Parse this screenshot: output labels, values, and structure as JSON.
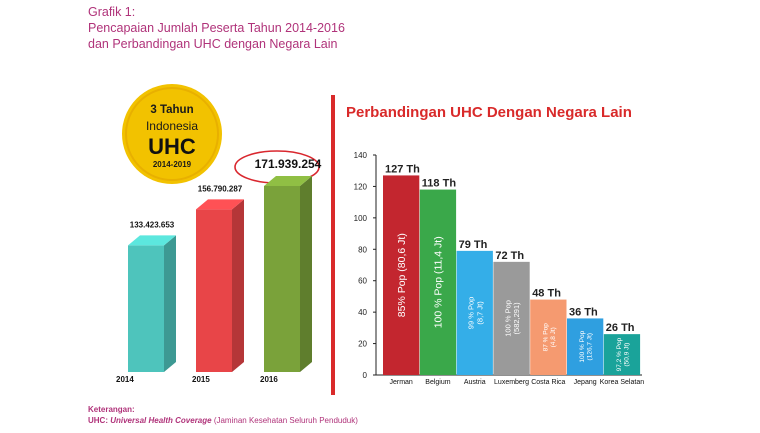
{
  "header": {
    "title": "Grafik 1:",
    "subtitle_line1": "Pencapaian Jumlah Peserta Tahun 2014-2016",
    "subtitle_line2": "dan Perbandingan UHC dengan Negara Lain"
  },
  "badge": {
    "line1": "3 Tahun",
    "line2": "Indonesia",
    "line3": "UHC",
    "line4": "2014-2019"
  },
  "footer": {
    "label": "Keterangan:",
    "uhc_prefix": "UHC: ",
    "uhc_term": "Universal Health Coverage",
    "uhc_desc": " (Jaminan Kesehatan Seluruh Penduduk)"
  },
  "colors": {
    "accent": "#b0337a",
    "circle_red": "#d9272e",
    "badge_gold": "#f2c200",
    "divider": "#d92a2a"
  },
  "chart_data": [
    {
      "type": "bar",
      "title": "",
      "categories": [
        "2014",
        "2015",
        "2016"
      ],
      "values": [
        133423653,
        156790287,
        171939254
      ],
      "value_labels": [
        "133.423.653",
        "156.790.287",
        "171.939.254"
      ],
      "colors": [
        "#4ec4bc",
        "#e84548",
        "#7aa23a"
      ],
      "highlight": "171.939.254",
      "bar_style": "3d"
    },
    {
      "type": "bar",
      "title": "Perbandingan UHC Dengan Negara Lain",
      "categories": [
        "Jerman",
        "Belgium",
        "Austria",
        "Luxemberg",
        "Costa Rica",
        "Jepang",
        "Korea Selatan"
      ],
      "values": [
        127,
        118,
        79,
        72,
        48,
        36,
        26
      ],
      "value_labels": [
        "127 Th",
        "118 Th",
        "79 Th",
        "72 Th",
        "48 Th",
        "36 Th",
        "26 Th"
      ],
      "inner_labels": [
        [
          "85% Pop (80,6 Jt)"
        ],
        [
          "100 % Pop (11,4 Jt)"
        ],
        [
          "99 % Pop",
          "(8,7 Jt)"
        ],
        [
          "100 % Pop",
          "(582,291)"
        ],
        [
          "87 % Pop",
          "(4,8 Jt)"
        ],
        [
          "100 % Pop",
          "(126,7 Jt)"
        ],
        [
          "97,2 % Pop",
          "(50,9 Jt)"
        ]
      ],
      "colors": [
        "#c3262f",
        "#3aa84a",
        "#34aee8",
        "#9a9a9a",
        "#f59a70",
        "#2f9fe0",
        "#1aa39a"
      ],
      "yticks": [
        0,
        20,
        40,
        60,
        80,
        100,
        120,
        140
      ],
      "ylim": [
        0,
        140
      ],
      "grid": false,
      "legend": "none"
    }
  ]
}
